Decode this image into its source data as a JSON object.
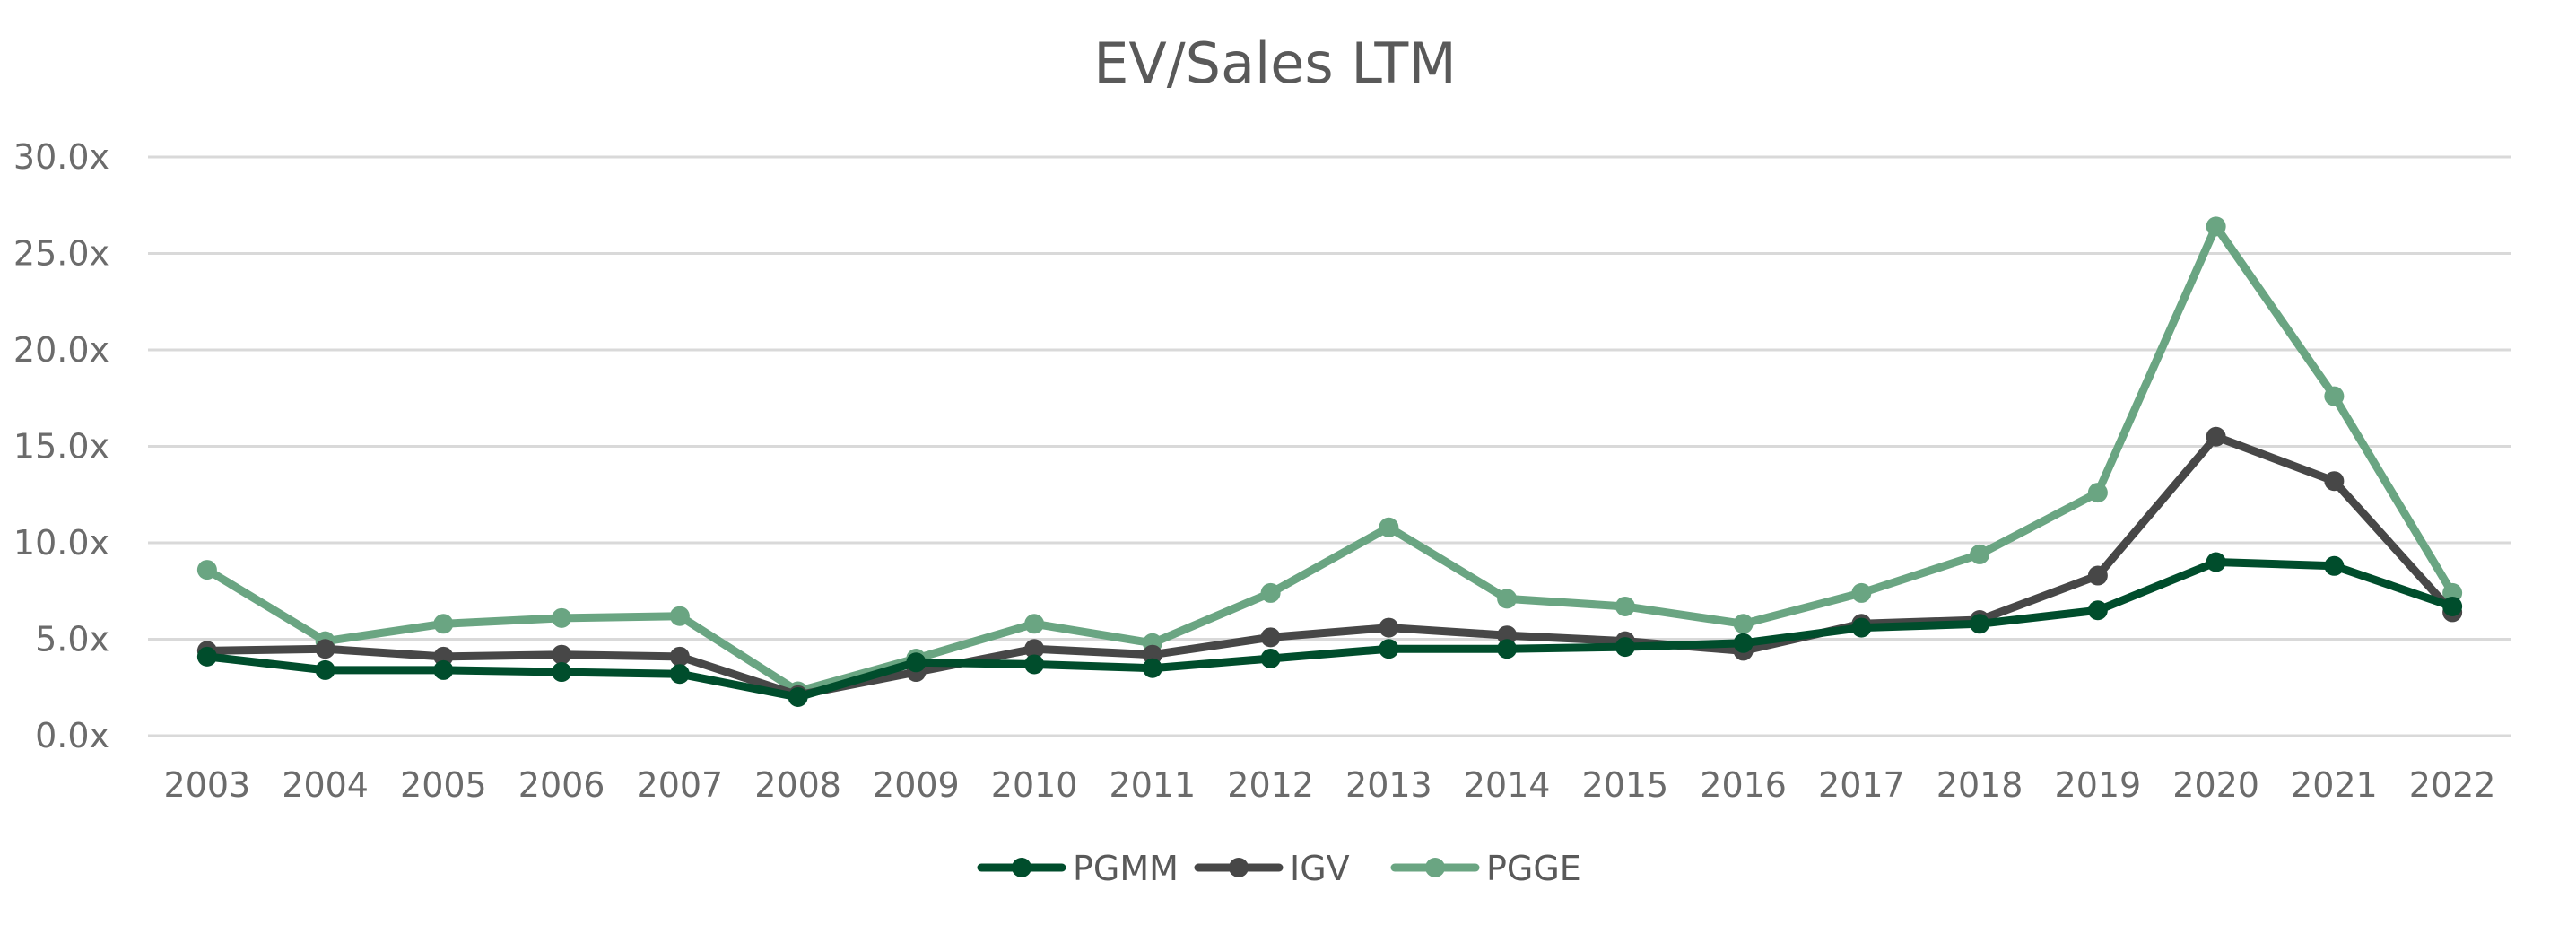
{
  "chart_data": {
    "type": "line",
    "title": "EV/Sales LTM",
    "xlabel": "",
    "ylabel": "",
    "ylim": [
      0,
      30
    ],
    "yticks": [
      0,
      5,
      10,
      15,
      20,
      25,
      30
    ],
    "ytick_labels": [
      "0.0x",
      "5.0x",
      "10.0x",
      "15.0x",
      "20.0x",
      "25.0x",
      "30.0x"
    ],
    "grid": true,
    "legend_position": "bottom-center",
    "categories": [
      "2003",
      "2004",
      "2005",
      "2006",
      "2007",
      "2008",
      "2009",
      "2010",
      "2011",
      "2012",
      "2013",
      "2014",
      "2015",
      "2016",
      "2017",
      "2018",
      "2019",
      "2020",
      "2021",
      "2022"
    ],
    "series": [
      {
        "name": "PGMM",
        "color": "#004d2c",
        "values": [
          4.1,
          3.4,
          3.4,
          3.3,
          3.2,
          2.0,
          3.8,
          3.7,
          3.5,
          4.0,
          4.5,
          4.5,
          4.6,
          4.8,
          5.6,
          5.8,
          6.5,
          9.0,
          8.8,
          6.7
        ]
      },
      {
        "name": "IGV",
        "color": "#474747",
        "values": [
          4.4,
          4.5,
          4.1,
          4.2,
          4.1,
          2.1,
          3.3,
          4.5,
          4.2,
          5.1,
          5.6,
          5.2,
          4.9,
          4.4,
          5.8,
          6.0,
          8.3,
          15.5,
          13.2,
          6.4
        ]
      },
      {
        "name": "PGGE",
        "color": "#6aa582",
        "values": [
          8.6,
          4.9,
          5.8,
          6.1,
          6.2,
          2.3,
          4.0,
          5.8,
          4.8,
          7.4,
          10.8,
          7.1,
          6.7,
          5.8,
          7.4,
          9.4,
          12.6,
          26.4,
          17.6,
          7.4
        ]
      }
    ]
  }
}
